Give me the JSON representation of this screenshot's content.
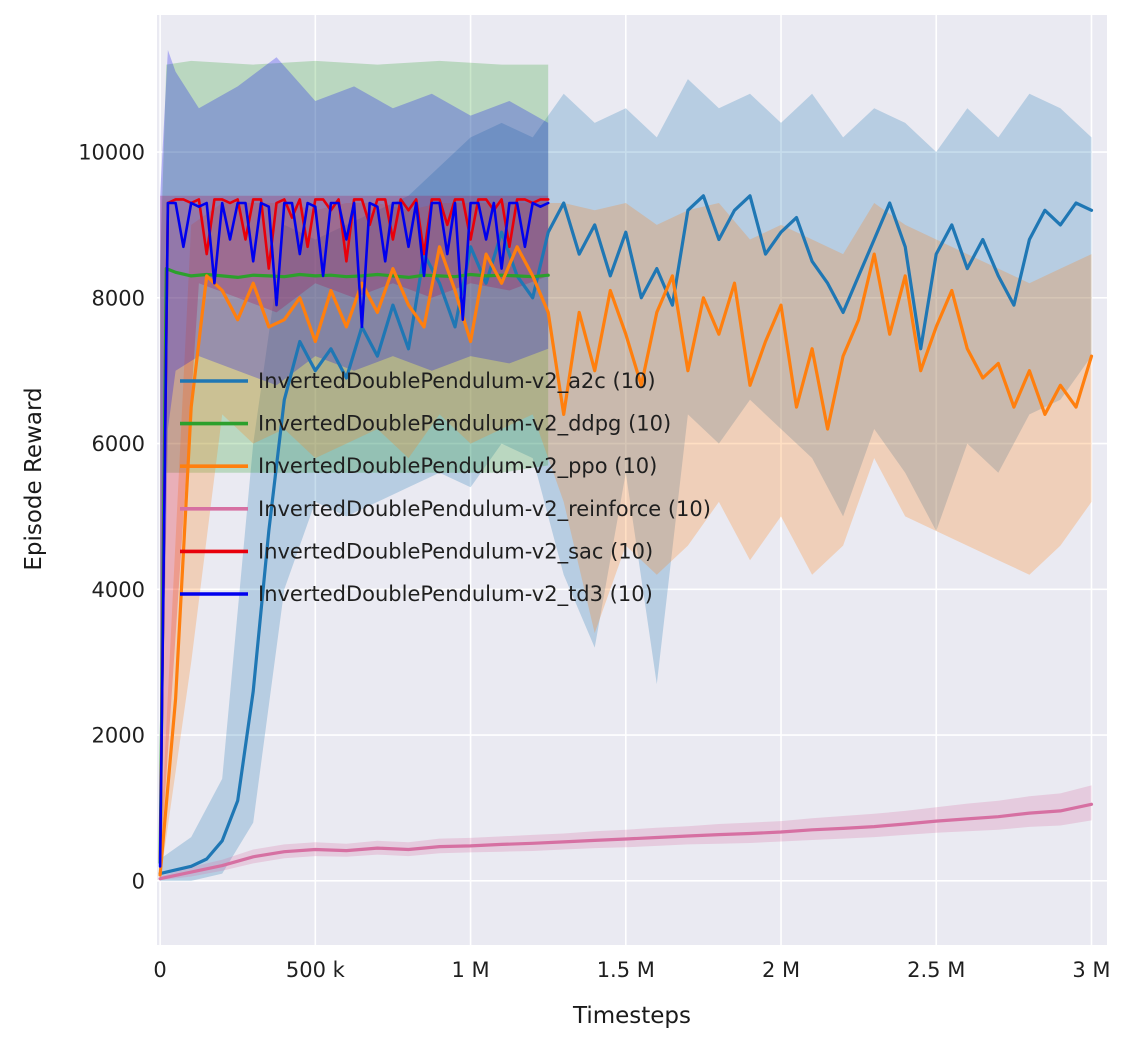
{
  "chart_data": {
    "type": "line",
    "title": "",
    "xlabel": "Timesteps",
    "ylabel": "Episode Reward",
    "x_unit": "thousands of timesteps",
    "xlim": [
      -10,
      3050
    ],
    "ylim": [
      -880,
      11880
    ],
    "grid": true,
    "legend": {
      "position": "upper-left",
      "frame": false
    },
    "style": {
      "panel_bg": "#eaeaf2",
      "grid_color": "#ffffff",
      "text_color": "#1f1f1f",
      "band_alpha": 0.25
    },
    "x_ticks": [
      {
        "v": 0,
        "label": "0"
      },
      {
        "v": 500,
        "label": "500 k"
      },
      {
        "v": 1000,
        "label": "1 M"
      },
      {
        "v": 1500,
        "label": "1.5 M"
      },
      {
        "v": 2000,
        "label": "2 M"
      },
      {
        "v": 2500,
        "label": "2.5 M"
      },
      {
        "v": 3000,
        "label": "3 M"
      }
    ],
    "y_ticks": [
      {
        "v": 0,
        "label": "0"
      },
      {
        "v": 2000,
        "label": "2000"
      },
      {
        "v": 4000,
        "label": "4000"
      },
      {
        "v": 6000,
        "label": "6000"
      },
      {
        "v": 8000,
        "label": "8000"
      },
      {
        "v": 10000,
        "label": "10000"
      }
    ],
    "series": [
      {
        "id": "a2c",
        "name": "InvertedDoublePendulum-v2_a2c (10)",
        "color": "#1f77b4",
        "width": 3.2,
        "x": [
          0,
          50,
          100,
          150,
          200,
          250,
          300,
          350,
          400,
          450,
          500,
          550,
          600,
          650,
          700,
          750,
          800,
          850,
          900,
          950,
          1000,
          1050,
          1100,
          1150,
          1200,
          1250,
          1300,
          1350,
          1400,
          1450,
          1500,
          1550,
          1600,
          1650,
          1700,
          1750,
          1800,
          1850,
          1900,
          1950,
          2000,
          2050,
          2100,
          2150,
          2200,
          2250,
          2300,
          2350,
          2400,
          2450,
          2500,
          2550,
          2600,
          2650,
          2700,
          2750,
          2800,
          2850,
          2900,
          2950,
          3000
        ],
        "y": [
          100,
          150,
          200,
          300,
          550,
          1100,
          2600,
          4800,
          6600,
          7400,
          7000,
          7300,
          6900,
          7600,
          7200,
          7900,
          7300,
          8600,
          8200,
          7600,
          8700,
          8200,
          8900,
          8300,
          8000,
          8900,
          9300,
          8600,
          9000,
          8300,
          8900,
          8000,
          8400,
          7900,
          9200,
          9400,
          8800,
          9200,
          9400,
          8600,
          8900,
          9100,
          8500,
          8200,
          7800,
          8300,
          8800,
          9300,
          8700,
          7300,
          8600,
          9000,
          8400,
          8800,
          8300,
          7900,
          8800,
          9200,
          9000,
          9300,
          9200
        ],
        "band": {
          "x": [
            0,
            100,
            200,
            300,
            400,
            500,
            600,
            700,
            800,
            900,
            1000,
            1100,
            1200,
            1300,
            1400,
            1500,
            1600,
            1700,
            1800,
            1900,
            2000,
            2100,
            2200,
            2300,
            2400,
            2500,
            2600,
            2700,
            2800,
            2900,
            3000
          ],
          "lo": [
            0,
            0,
            100,
            800,
            4000,
            5200,
            5000,
            5200,
            5400,
            5600,
            5400,
            6000,
            5800,
            4200,
            3200,
            5600,
            2700,
            6400,
            6000,
            6600,
            6200,
            5800,
            5000,
            6200,
            5600,
            4800,
            6000,
            5600,
            6400,
            6600,
            7200
          ],
          "hi": [
            300,
            600,
            1400,
            6000,
            9000,
            8800,
            9000,
            9200,
            9400,
            9800,
            10200,
            10400,
            10200,
            10800,
            10400,
            10600,
            10200,
            11000,
            10600,
            10800,
            10400,
            10800,
            10200,
            10600,
            10400,
            10000,
            10600,
            10200,
            10800,
            10600,
            10200
          ]
        }
      },
      {
        "id": "ddpg",
        "name": "InvertedDoublePendulum-v2_ddpg (10)",
        "color": "#2ca02c",
        "width": 3.2,
        "x": [
          0,
          20,
          50,
          100,
          150,
          200,
          250,
          300,
          350,
          400,
          450,
          500,
          550,
          600,
          650,
          700,
          750,
          800,
          850,
          900,
          950,
          1000,
          1050,
          1100,
          1150,
          1200,
          1250
        ],
        "y": [
          250,
          8400,
          8350,
          8300,
          8320,
          8300,
          8280,
          8310,
          8300,
          8290,
          8320,
          8300,
          8310,
          8290,
          8300,
          8320,
          8300,
          8280,
          8310,
          8300,
          8290,
          8320,
          8300,
          8310,
          8300,
          8290,
          8310
        ],
        "band": {
          "x": [
            0,
            20,
            100,
            300,
            500,
            700,
            900,
            1100,
            1250
          ],
          "lo": [
            200,
            5600,
            5600,
            5600,
            5600,
            5600,
            5600,
            5600,
            5700
          ],
          "hi": [
            8400,
            11200,
            11250,
            11200,
            11250,
            11200,
            11250,
            11200,
            11200
          ]
        }
      },
      {
        "id": "ppo",
        "name": "InvertedDoublePendulum-v2_ppo (10)",
        "color": "#ff7f0e",
        "width": 3.2,
        "x": [
          0,
          50,
          100,
          150,
          200,
          250,
          300,
          350,
          400,
          450,
          500,
          550,
          600,
          650,
          700,
          750,
          800,
          850,
          900,
          950,
          1000,
          1050,
          1100,
          1150,
          1200,
          1250,
          1300,
          1350,
          1400,
          1450,
          1500,
          1550,
          1600,
          1650,
          1700,
          1750,
          1800,
          1850,
          1900,
          1950,
          2000,
          2050,
          2100,
          2150,
          2200,
          2250,
          2300,
          2350,
          2400,
          2450,
          2500,
          2550,
          2600,
          2650,
          2700,
          2750,
          2800,
          2850,
          2900,
          2950,
          3000
        ],
        "y": [
          80,
          2500,
          6500,
          8300,
          8100,
          7700,
          8200,
          7600,
          7700,
          8000,
          7400,
          8100,
          7600,
          8200,
          7800,
          8400,
          7900,
          7600,
          8700,
          8100,
          7400,
          8600,
          8200,
          8700,
          8300,
          7800,
          6400,
          7800,
          7000,
          8100,
          7500,
          6800,
          7800,
          8300,
          7000,
          8000,
          7500,
          8200,
          6800,
          7400,
          7900,
          6500,
          7300,
          6200,
          7200,
          7700,
          8600,
          7500,
          8300,
          7000,
          7600,
          8100,
          7300,
          6900,
          7100,
          6500,
          7000,
          6400,
          6800,
          6500,
          7200
        ],
        "band": {
          "x": [
            0,
            100,
            200,
            300,
            400,
            500,
            600,
            700,
            800,
            900,
            1000,
            1100,
            1200,
            1300,
            1400,
            1500,
            1600,
            1700,
            1800,
            1900,
            2000,
            2100,
            2200,
            2300,
            2400,
            2500,
            2600,
            2700,
            2800,
            2900,
            3000
          ],
          "lo": [
            0,
            3000,
            6400,
            6000,
            6200,
            5800,
            6000,
            6200,
            5800,
            6400,
            6000,
            6200,
            6400,
            5200,
            3400,
            4600,
            4200,
            4600,
            5200,
            4400,
            5000,
            4200,
            4600,
            5800,
            5000,
            4800,
            4600,
            4400,
            4200,
            4600,
            5200
          ],
          "hi": [
            400,
            9000,
            9300,
            9300,
            9300,
            9200,
            9300,
            9300,
            9200,
            9300,
            9300,
            9300,
            9300,
            9300,
            9200,
            9300,
            9000,
            9200,
            9300,
            8800,
            9000,
            8800,
            8600,
            9300,
            9000,
            8800,
            8600,
            8400,
            8200,
            8400,
            8600
          ]
        }
      },
      {
        "id": "reinforce",
        "name": "InvertedDoublePendulum-v2_reinforce (10)",
        "color": "#d670a2",
        "width": 3.2,
        "x": [
          0,
          100,
          200,
          300,
          400,
          500,
          600,
          700,
          800,
          900,
          1000,
          1100,
          1200,
          1300,
          1400,
          1500,
          1600,
          1700,
          1800,
          1900,
          2000,
          2100,
          2200,
          2300,
          2400,
          2500,
          2600,
          2700,
          2800,
          2900,
          3000
        ],
        "y": [
          30,
          120,
          210,
          330,
          400,
          430,
          415,
          450,
          430,
          470,
          480,
          500,
          515,
          535,
          555,
          575,
          595,
          615,
          635,
          650,
          670,
          700,
          720,
          745,
          780,
          820,
          850,
          880,
          930,
          960,
          1050
        ],
        "band": {
          "x": [
            0,
            100,
            200,
            300,
            400,
            500,
            600,
            700,
            800,
            900,
            1000,
            1100,
            1200,
            1300,
            1400,
            1500,
            1600,
            1700,
            1800,
            1900,
            2000,
            2100,
            2200,
            2300,
            2400,
            2500,
            2600,
            2700,
            2800,
            2900,
            3000
          ],
          "lo": [
            10,
            60,
            140,
            240,
            310,
            340,
            330,
            360,
            340,
            380,
            390,
            400,
            410,
            430,
            450,
            460,
            480,
            500,
            510,
            520,
            540,
            560,
            580,
            600,
            630,
            660,
            680,
            700,
            740,
            760,
            830
          ],
          "hi": [
            60,
            190,
            290,
            430,
            500,
            530,
            510,
            550,
            530,
            580,
            590,
            610,
            630,
            650,
            680,
            700,
            730,
            750,
            780,
            800,
            820,
            860,
            890,
            920,
            960,
            1010,
            1060,
            1100,
            1160,
            1200,
            1310
          ]
        }
      },
      {
        "id": "sac",
        "name": "InvertedDoublePendulum-v2_sac (10)",
        "color": "#e8000b",
        "width": 2.6,
        "x": [
          0,
          25,
          50,
          75,
          100,
          125,
          150,
          175,
          200,
          225,
          250,
          275,
          300,
          325,
          350,
          375,
          400,
          425,
          450,
          475,
          500,
          525,
          550,
          575,
          600,
          625,
          650,
          675,
          700,
          725,
          750,
          775,
          800,
          825,
          850,
          875,
          900,
          925,
          950,
          975,
          1000,
          1025,
          1050,
          1075,
          1100,
          1125,
          1150,
          1175,
          1200,
          1225,
          1250
        ],
        "y": [
          300,
          9300,
          9350,
          9350,
          9300,
          9350,
          8600,
          9350,
          9350,
          9300,
          9350,
          8800,
          9350,
          9350,
          8400,
          9300,
          9350,
          9100,
          9350,
          8700,
          9350,
          9350,
          9200,
          9350,
          8500,
          9350,
          9350,
          9000,
          9350,
          9350,
          8800,
          9350,
          9200,
          9350,
          8600,
          9350,
          9350,
          9000,
          9350,
          9350,
          8800,
          9350,
          9350,
          9200,
          9350,
          8700,
          9350,
          9350,
          9300,
          9350,
          9350
        ],
        "band": {
          "x": [
            0,
            125,
            250,
            375,
            500,
            625,
            750,
            875,
            1000,
            1125,
            1250
          ],
          "lo": [
            150,
            8200,
            8000,
            7800,
            8200,
            8000,
            8200,
            8000,
            8200,
            8100,
            8300
          ],
          "hi": [
            9400,
            9400,
            9400,
            9400,
            9400,
            9400,
            9400,
            9400,
            9400,
            9400,
            9400
          ]
        }
      },
      {
        "id": "td3",
        "name": "InvertedDoublePendulum-v2_td3 (10)",
        "color": "#0000ee",
        "width": 2.6,
        "x": [
          0,
          25,
          50,
          75,
          100,
          125,
          150,
          175,
          200,
          225,
          250,
          275,
          300,
          325,
          350,
          375,
          400,
          425,
          450,
          475,
          500,
          525,
          550,
          575,
          600,
          625,
          650,
          675,
          700,
          725,
          750,
          775,
          800,
          825,
          850,
          875,
          900,
          925,
          950,
          975,
          1000,
          1025,
          1050,
          1075,
          1100,
          1125,
          1150,
          1175,
          1200,
          1225,
          1250
        ],
        "y": [
          200,
          9300,
          9300,
          8700,
          9300,
          9250,
          9300,
          8200,
          9300,
          8800,
          9300,
          9300,
          8500,
          9300,
          9250,
          7900,
          9300,
          9300,
          8600,
          9300,
          9250,
          8300,
          9300,
          9300,
          8800,
          9300,
          7600,
          9300,
          9250,
          8500,
          9300,
          9300,
          8700,
          9300,
          8300,
          9300,
          9300,
          8600,
          9300,
          7700,
          9300,
          9300,
          8800,
          9300,
          8400,
          9300,
          9300,
          8700,
          9300,
          9250,
          9300
        ],
        "band": {
          "x": [
            0,
            25,
            50,
            125,
            250,
            375,
            500,
            625,
            750,
            875,
            1000,
            1125,
            1250
          ],
          "lo": [
            100,
            6200,
            7000,
            7200,
            7000,
            6800,
            7200,
            7000,
            7200,
            7000,
            7200,
            7100,
            7300
          ],
          "hi": [
            9400,
            11400,
            11100,
            10600,
            10900,
            11300,
            10700,
            10900,
            10600,
            10800,
            10500,
            10700,
            10400
          ]
        }
      }
    ]
  }
}
